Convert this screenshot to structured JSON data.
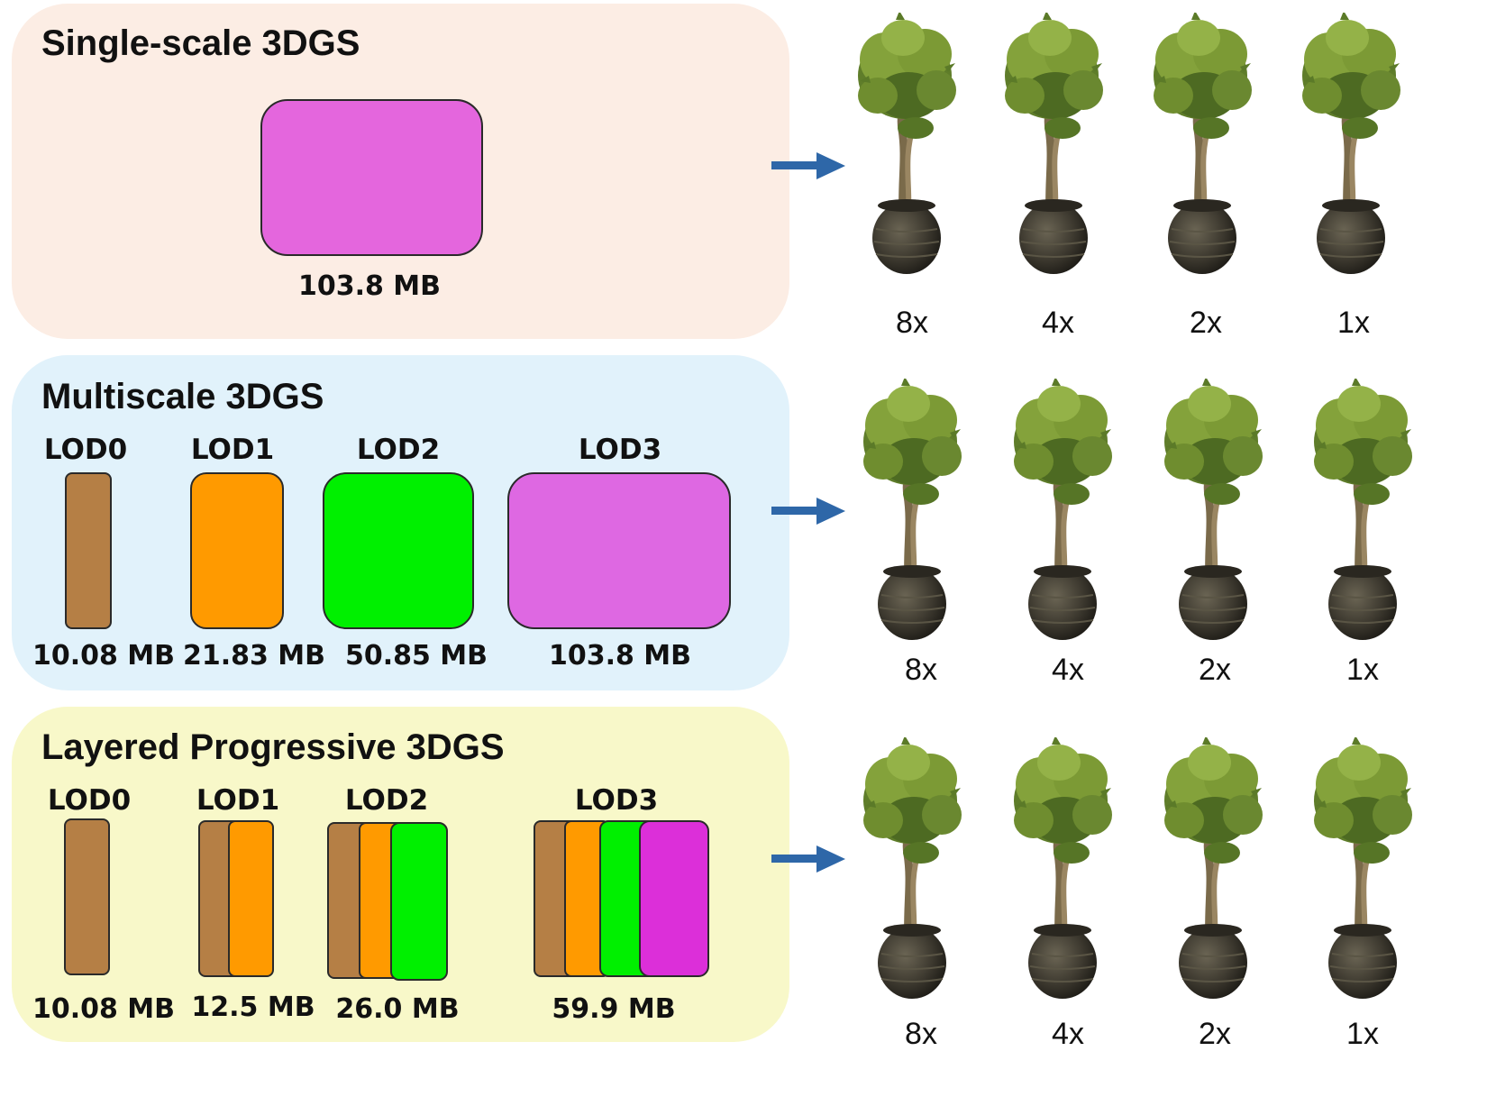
{
  "colors": {
    "lod0": "#b57f45",
    "lod1": "#ff9a00",
    "lod2": "#00f000",
    "lod3_multiscale": "#de68e2",
    "lod3_progressive": "#dc2fd9",
    "single": "#e466dd",
    "arrow": "#2e67a8",
    "panel_single": "#fcede4",
    "panel_multiscale": "#e1f2fb",
    "panel_progressive": "#f8f8c9"
  },
  "panels": {
    "single": {
      "title": "Single-scale 3DGS",
      "size": "103.8 MB"
    },
    "multiscale": {
      "title": "Multiscale 3DGS",
      "lods": [
        {
          "label": "LOD0",
          "size": "10.08 MB"
        },
        {
          "label": "LOD1",
          "size": "21.83 MB"
        },
        {
          "label": "LOD2",
          "size": "50.85 MB"
        },
        {
          "label": "LOD3",
          "size": "103.8 MB"
        }
      ]
    },
    "progressive": {
      "title": "Layered Progressive 3DGS",
      "lods": [
        {
          "label": "LOD0",
          "size": "10.08 MB"
        },
        {
          "label": "LOD1",
          "size": "12.5 MB"
        },
        {
          "label": "LOD2",
          "size": "26.0 MB"
        },
        {
          "label": "LOD3",
          "size": "59.9 MB"
        }
      ]
    }
  },
  "renders": {
    "scales": [
      "8x",
      "4x",
      "2x",
      "1x"
    ]
  }
}
